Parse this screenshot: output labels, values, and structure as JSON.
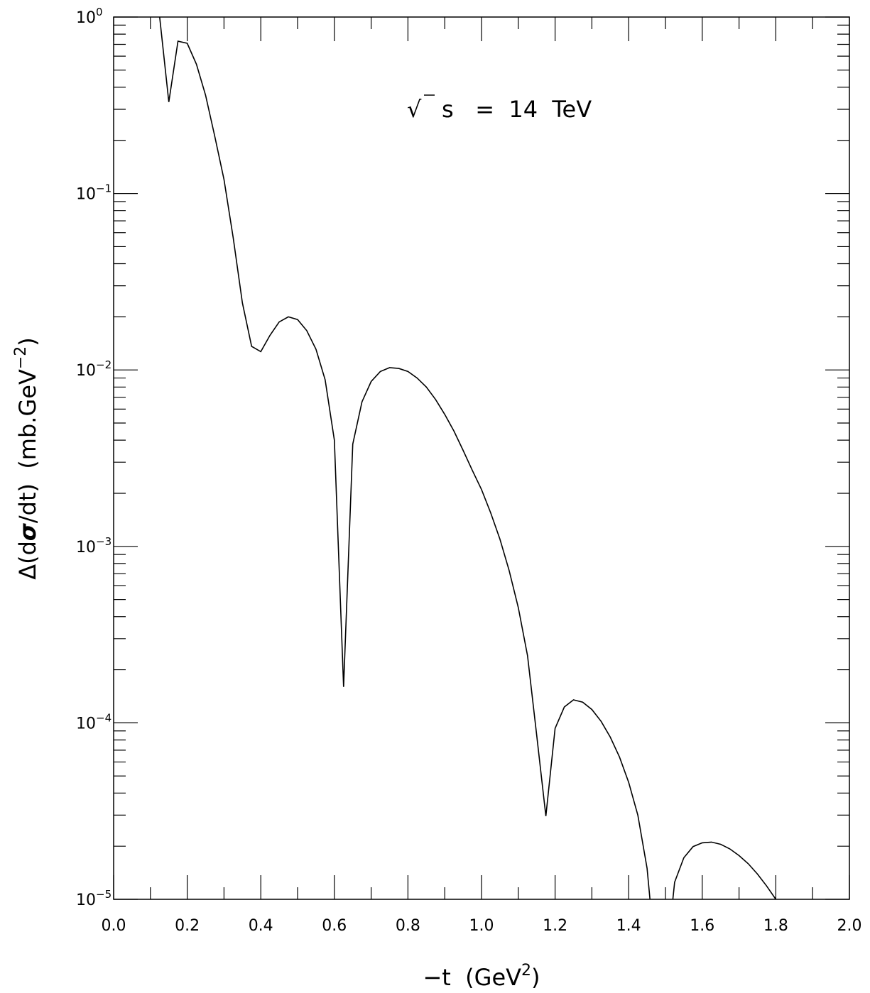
{
  "chart_data": {
    "type": "line",
    "title": "",
    "annotation": {
      "sqrt_symbol": "√",
      "text": "s   =  14  TeV"
    },
    "xlabel": {
      "main": "−t  (GeV",
      "sup": "2",
      "close": ")"
    },
    "ylabel": {
      "delta": "Δ",
      "pre": "(d",
      "sigma": "σ",
      "post": "/dt)  (mb.GeV",
      "sup": "−2",
      "close": ")"
    },
    "xlim": [
      0.0,
      2.0
    ],
    "ylim": [
      1e-05,
      1
    ],
    "yscale": "log",
    "x_ticks": [
      {
        "value": 0.0,
        "label": "0.0"
      },
      {
        "value": 0.2,
        "label": "0.2"
      },
      {
        "value": 0.4,
        "label": "0.4"
      },
      {
        "value": 0.6,
        "label": "0.6"
      },
      {
        "value": 0.8,
        "label": "0.8"
      },
      {
        "value": 1.0,
        "label": "1.0"
      },
      {
        "value": 1.2,
        "label": "1.2"
      },
      {
        "value": 1.4,
        "label": "1.4"
      },
      {
        "value": 1.6,
        "label": "1.6"
      },
      {
        "value": 1.8,
        "label": "1.8"
      },
      {
        "value": 2.0,
        "label": "2.0"
      }
    ],
    "y_ticks": [
      {
        "value": 1.0,
        "base": "10",
        "exp": "0"
      },
      {
        "value": 0.1,
        "base": "10",
        "exp": "−1"
      },
      {
        "value": 0.01,
        "base": "10",
        "exp": "−2"
      },
      {
        "value": 0.001,
        "base": "10",
        "exp": "−3"
      },
      {
        "value": 0.0001,
        "base": "10",
        "exp": "−4"
      },
      {
        "value": 1e-05,
        "base": "10",
        "exp": "−5"
      }
    ],
    "grid": false,
    "series": [
      {
        "color": "#000000",
        "segments": [
          {
            "x": [
              0.125,
              0.15,
              0.175,
              0.2,
              0.225,
              0.25,
              0.275,
              0.3,
              0.325,
              0.35,
              0.375,
              0.4,
              0.425,
              0.45,
              0.475,
              0.5,
              0.525,
              0.55,
              0.575,
              0.6,
              0.625,
              0.65,
              0.675,
              0.7,
              0.725,
              0.75,
              0.775,
              0.8,
              0.825,
              0.85,
              0.875,
              0.9,
              0.925,
              0.95,
              0.975,
              1.0,
              1.025,
              1.05,
              1.075,
              1.1,
              1.125,
              1.15,
              1.175,
              1.2,
              1.225,
              1.25,
              1.275,
              1.3,
              1.325,
              1.35,
              1.375,
              1.4,
              1.425,
              1.45,
              1.458
            ],
            "y": [
              1.0,
              0.33,
              0.73,
              0.71,
              0.54,
              0.36,
              0.21,
              0.12,
              0.056,
              0.024,
              0.0136,
              0.0127,
              0.0157,
              0.0187,
              0.02,
              0.0193,
              0.0167,
              0.0131,
              0.0088,
              0.004,
              0.00016,
              0.0038,
              0.0066,
              0.0086,
              0.0098,
              0.0103,
              0.0102,
              0.0098,
              0.009,
              0.008,
              0.0068,
              0.0056,
              0.0045,
              0.0035,
              0.0027,
              0.0021,
              0.00155,
              0.0011,
              0.00073,
              0.00045,
              0.00024,
              8.5e-05,
              2.96e-05,
              9.3e-05,
              0.000123,
              0.000135,
              0.000131,
              0.000119,
              0.000102,
              8.3e-05,
              6.4e-05,
              4.6e-05,
              3e-05,
              1.5e-05,
              1e-05
            ]
          },
          {
            "x": [
              1.52,
              1.525,
              1.55,
              1.575,
              1.6,
              1.625,
              1.65,
              1.675,
              1.7,
              1.725,
              1.75,
              1.775,
              1.8
            ],
            "y": [
              1e-05,
              1.25e-05,
              1.72e-05,
              1.99e-05,
              2.09e-05,
              2.11e-05,
              2.05e-05,
              1.93e-05,
              1.77e-05,
              1.59e-05,
              1.39e-05,
              1.19e-05,
              1e-05
            ]
          }
        ]
      }
    ]
  }
}
